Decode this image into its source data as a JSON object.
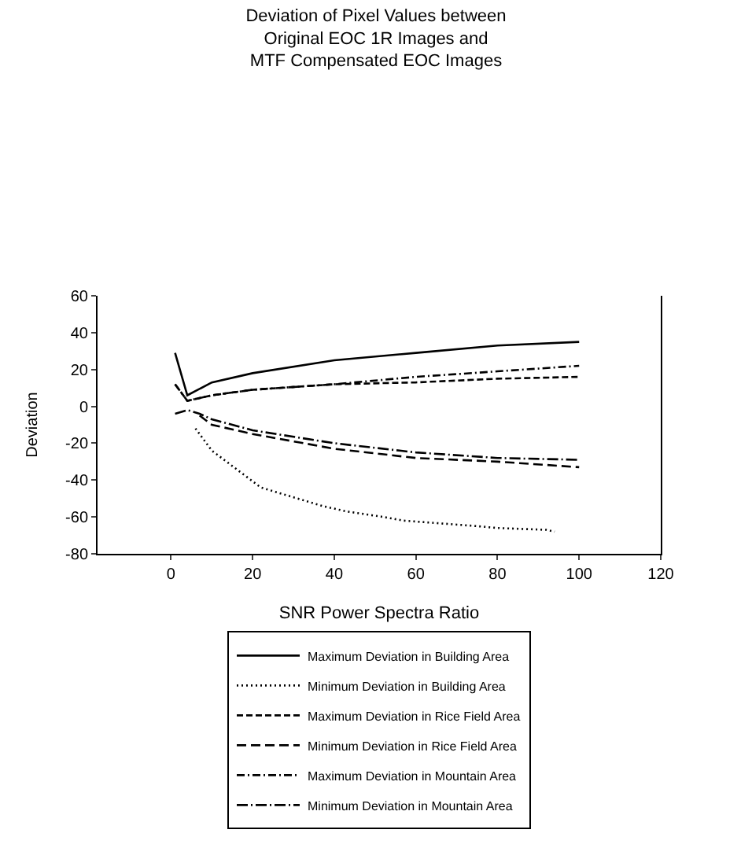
{
  "chart_data": {
    "type": "line",
    "title": "Deviation of Pixel Values between\nOriginal EOC 1R Images and\nMTF Compensated EOC Images",
    "xlabel": "SNR Power Spectra Ratio",
    "ylabel": "Deviation",
    "xlim": [
      -18,
      120
    ],
    "xticks": [
      0,
      20,
      40,
      60,
      80,
      100,
      120
    ],
    "ylim": [
      -80,
      60
    ],
    "yticks": [
      -80,
      -60,
      -40,
      -20,
      0,
      20,
      40,
      60
    ],
    "legend": "bottom",
    "series": [
      {
        "name": "Maximum Deviation in Building Area",
        "color": "#000000",
        "line_style": "solid",
        "x": [
          1,
          4,
          10,
          20,
          40,
          60,
          80,
          100
        ],
        "values": [
          29,
          6,
          13,
          18,
          25,
          29,
          33,
          35
        ]
      },
      {
        "name": "Minimum Deviation in Building Area",
        "color": "#000000",
        "line_style": "dotted",
        "x": [
          6,
          8,
          10,
          22,
          37,
          39,
          43,
          52,
          57,
          75,
          80,
          92,
          94
        ],
        "values": [
          -12,
          -18,
          -24,
          -44,
          -54,
          -55,
          -57,
          -60,
          -62,
          -65,
          -66,
          -67,
          -68
        ]
      },
      {
        "name": "Maximum Deviation in Rice Field Area",
        "color": "#000000",
        "line_style": "dashed",
        "x": [
          1,
          4,
          10,
          20,
          40,
          60,
          80,
          100
        ],
        "values": [
          12,
          3,
          6,
          9,
          12,
          13,
          15,
          16
        ]
      },
      {
        "name": "Minimum Deviation in Rice Field Area",
        "color": "#000000",
        "line_style": "dashed",
        "x": [
          7,
          10,
          20,
          40,
          60,
          80,
          100
        ],
        "values": [
          -5,
          -10,
          -15,
          -23,
          -28,
          -30,
          -33
        ]
      },
      {
        "name": "Maximum Deviation in Mountain Area",
        "color": "#000000",
        "line_style": "dashed",
        "x": [
          1,
          4,
          10,
          20,
          40,
          60,
          80,
          100
        ],
        "values": [
          12,
          3,
          6,
          9,
          12,
          16,
          19,
          22
        ]
      },
      {
        "name": "Minimum Deviation in Mountain Area",
        "color": "#000000",
        "line_style": "dashed",
        "x": [
          1,
          4,
          7,
          10,
          20,
          40,
          60,
          80,
          100
        ],
        "values": [
          -4,
          -2,
          -4,
          -7,
          -13,
          -20,
          -25,
          -28,
          -29
        ]
      }
    ]
  }
}
